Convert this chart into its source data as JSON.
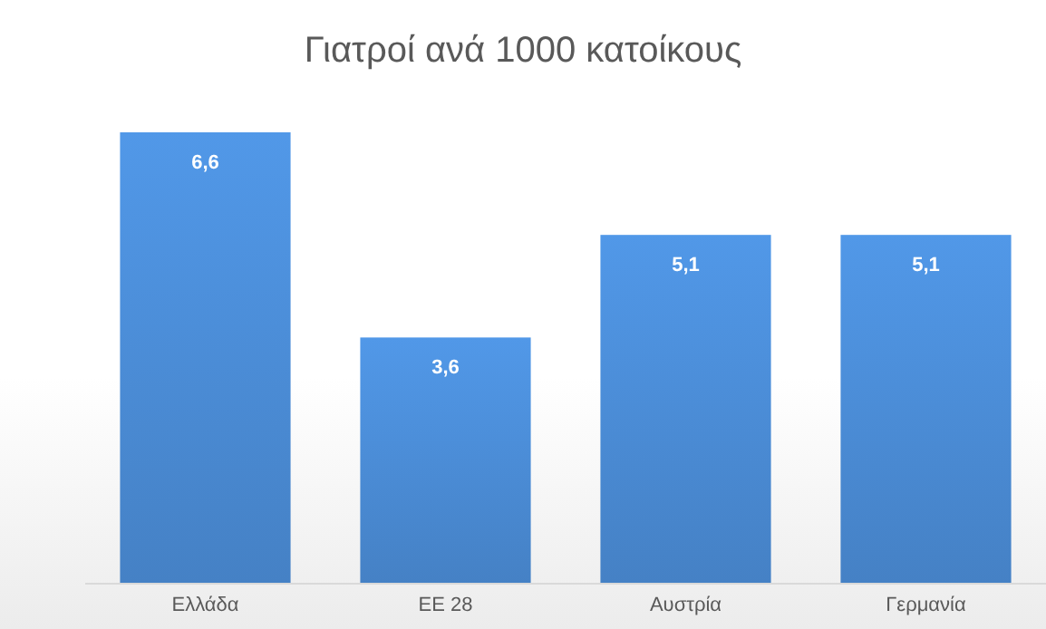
{
  "chart_data": {
    "type": "bar",
    "title": "Γιατροί ανά 1000 κατοίκους",
    "categories": [
      "Ελλάδα",
      "ΕΕ 28",
      "Αυστρία",
      "Γερμανία"
    ],
    "values": [
      6.6,
      3.6,
      5.1,
      5.1
    ],
    "value_labels": [
      "6,6",
      "3,6",
      "5,1",
      "5,1"
    ],
    "color": "#4a8bd4"
  }
}
